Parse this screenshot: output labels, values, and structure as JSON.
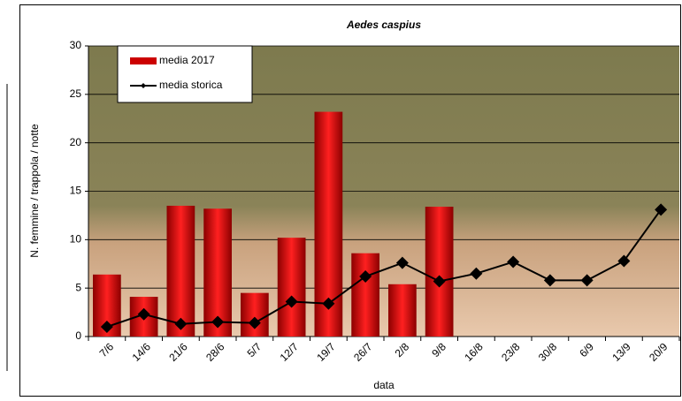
{
  "chart_data": {
    "type": "bar",
    "title": "Aedes caspius",
    "x_label": "data",
    "y_label": "N. femmine / trappola / notte",
    "categories": [
      "7/6",
      "14/6",
      "21/6",
      "28/6",
      "5/7",
      "12/7",
      "19/7",
      "26/7",
      "2/8",
      "9/8",
      "16/8",
      "23/8",
      "30/8",
      "6/9",
      "13/9",
      "20/9"
    ],
    "series": [
      {
        "name": "media 2017",
        "type": "bar",
        "color": "#cc0000",
        "values": [
          6.4,
          4.1,
          13.5,
          13.2,
          4.5,
          10.2,
          23.2,
          8.6,
          5.4,
          13.4,
          null,
          null,
          null,
          null,
          null,
          null
        ]
      },
      {
        "name": "media storica",
        "type": "line",
        "color": "#000000",
        "values": [
          1.0,
          2.3,
          1.3,
          1.5,
          1.4,
          3.6,
          3.4,
          6.2,
          7.6,
          5.7,
          6.5,
          7.7,
          5.8,
          5.8,
          7.8,
          13.1
        ]
      }
    ],
    "ylim": [
      0,
      30
    ],
    "yticks": [
      0,
      5,
      10,
      15,
      20,
      25,
      30
    ],
    "grid": true,
    "legend": "top-left"
  }
}
